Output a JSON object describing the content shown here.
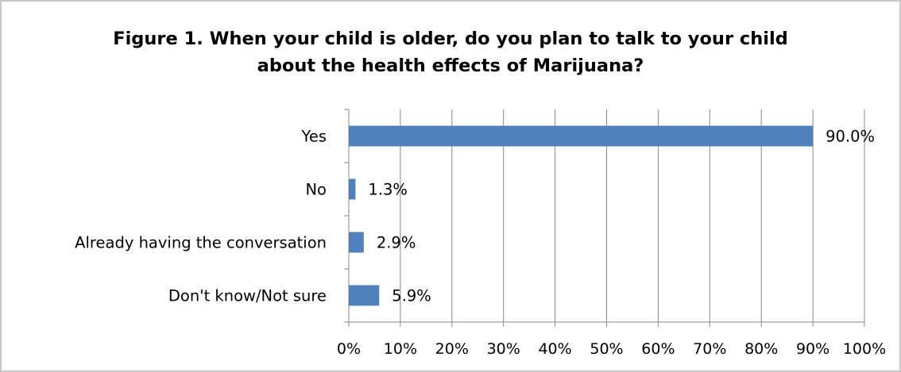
{
  "chart_data": {
    "type": "bar",
    "orientation": "horizontal",
    "title": "Figure 1. When your child is older, do you plan to talk to your child about the health effects of Marijuana?",
    "title_lines": [
      "Figure 1. When your child is older, do you plan to talk to your child",
      "about the health effects of Marijuana?"
    ],
    "categories": [
      "Yes",
      "No",
      "Already having the conversation",
      "Don't know/Not sure"
    ],
    "values": [
      90.0,
      1.3,
      2.9,
      5.9
    ],
    "value_labels": [
      "90.0%",
      "1.3%",
      "2.9%",
      "5.9%"
    ],
    "xlim": [
      0,
      100
    ],
    "x_ticks": [
      0,
      10,
      20,
      30,
      40,
      50,
      60,
      70,
      80,
      90,
      100
    ],
    "x_tick_labels": [
      "0%",
      "10%",
      "20%",
      "30%",
      "40%",
      "50%",
      "60%",
      "70%",
      "80%",
      "90%",
      "100%"
    ],
    "xlabel": "",
    "ylabel": "",
    "grid": true,
    "legend": false,
    "bar_color": "#4f81bd",
    "grid_color": "#878787"
  }
}
